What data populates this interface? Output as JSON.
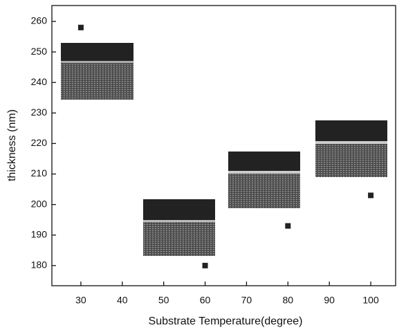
{
  "chart_data": {
    "type": "scatter",
    "xlabel": "Substrate Temperature(degree)",
    "ylabel": "thickness (nm)",
    "x": [
      30,
      60,
      80,
      100
    ],
    "values": [
      258,
      180,
      193,
      203
    ],
    "color": "#222222",
    "marker": "square",
    "xlim": [
      23,
      106
    ],
    "ylim": [
      173.4,
      265.2
    ],
    "xticks": [
      30,
      40,
      50,
      60,
      70,
      80,
      90,
      100
    ],
    "yticks": [
      180,
      190,
      200,
      210,
      220,
      230,
      240,
      250,
      260
    ],
    "grid": false
  }
}
